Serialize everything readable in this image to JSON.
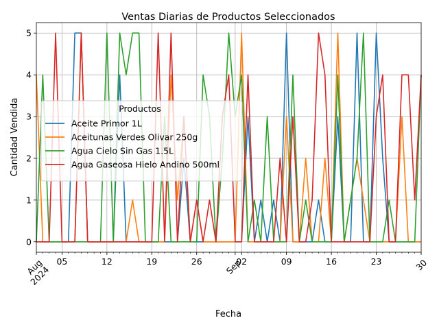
{
  "chart_data": {
    "type": "line",
    "title": "Ventas Diarias de Productos Seleccionados",
    "xlabel": "Fecha",
    "ylabel": "Cantidad Vendida",
    "legend_title": "Productos",
    "legend_position": "center-left",
    "grid": true,
    "x_range": [
      "2024-08-01",
      "2024-09-30"
    ],
    "ylim": [
      -0.25,
      5.25
    ],
    "yticks": [
      0,
      1,
      2,
      3,
      4,
      5
    ],
    "xticks": [
      {
        "date": "2024-08-01",
        "label": "Aug\n2024",
        "rotated": true
      },
      {
        "date": "2024-08-05",
        "label": "05",
        "rotated": false
      },
      {
        "date": "2024-08-12",
        "label": "12",
        "rotated": false
      },
      {
        "date": "2024-08-19",
        "label": "19",
        "rotated": false
      },
      {
        "date": "2024-08-26",
        "label": "26",
        "rotated": false
      },
      {
        "date": "2024-09-01",
        "label": "Sep",
        "rotated": true
      },
      {
        "date": "2024-09-02",
        "label": "02",
        "rotated": false
      },
      {
        "date": "2024-09-09",
        "label": "09",
        "rotated": false
      },
      {
        "date": "2024-09-16",
        "label": "16",
        "rotated": false
      },
      {
        "date": "2024-09-23",
        "label": "23",
        "rotated": false
      },
      {
        "date": "2024-09-30",
        "label": "30",
        "rotated": true
      }
    ],
    "start_date": "2024-08-01",
    "series": [
      {
        "name": "Aceite Primor 1L",
        "color": "#1f77b4",
        "values": [
          0,
          0,
          0,
          0,
          0,
          0,
          5,
          5,
          0,
          0,
          0,
          0,
          0,
          4,
          0,
          0,
          0,
          0,
          0,
          0,
          0,
          0,
          0,
          2,
          0,
          0,
          0,
          0,
          0,
          0,
          0,
          0,
          0,
          3,
          0,
          1,
          0,
          1,
          0,
          5,
          0,
          0,
          0,
          0,
          1,
          0,
          0,
          3,
          0,
          0,
          5,
          0,
          0,
          5,
          2,
          0,
          0,
          0,
          0,
          0,
          0
        ]
      },
      {
        "name": "Aceitunas Verdes Olivar 250g",
        "color": "#ff7f0e",
        "values": [
          4,
          0,
          0,
          0,
          0,
          0,
          0,
          5,
          0,
          0,
          0,
          0,
          0,
          0,
          0,
          1,
          0,
          0,
          0,
          0,
          0,
          4,
          1,
          3,
          0,
          1,
          0,
          0,
          0,
          0,
          0,
          0,
          5,
          0,
          0,
          0,
          0,
          0,
          0,
          3,
          0,
          0,
          2,
          0,
          0,
          2,
          0,
          5,
          0,
          1,
          2,
          1,
          0,
          0,
          0,
          0,
          0,
          3,
          0,
          0,
          0
        ]
      },
      {
        "name": "Agua Cielo Sin Gas 1.5L",
        "color": "#2ca02c",
        "values": [
          0,
          4,
          0,
          0,
          0,
          0,
          0,
          0,
          0,
          0,
          0,
          5,
          0,
          5,
          4,
          5,
          5,
          0,
          0,
          0,
          3,
          0,
          0,
          0,
          0,
          0,
          4,
          3,
          0,
          2,
          5,
          3,
          4,
          0,
          1,
          0,
          3,
          0,
          0,
          0,
          4,
          0,
          1,
          0,
          0,
          0,
          0,
          4,
          0,
          1,
          2,
          5,
          0,
          0,
          0,
          1,
          0,
          0,
          0,
          0,
          4
        ]
      },
      {
        "name": "Agua Gaseosa Hielo Andino 500ml",
        "color": "#d62728",
        "values": [
          0,
          0,
          0,
          5,
          0,
          0,
          0,
          5,
          0,
          0,
          0,
          0,
          0,
          0,
          0,
          0,
          0,
          0,
          0,
          5,
          0,
          5,
          0,
          3,
          0,
          1,
          0,
          1,
          0,
          3,
          4,
          0,
          0,
          4,
          0,
          0,
          0,
          0,
          2,
          0,
          3,
          0,
          0,
          1,
          5,
          4,
          0,
          0,
          0,
          0,
          0,
          0,
          0,
          3,
          4,
          0,
          0,
          4,
          4,
          1,
          4
        ]
      }
    ]
  }
}
